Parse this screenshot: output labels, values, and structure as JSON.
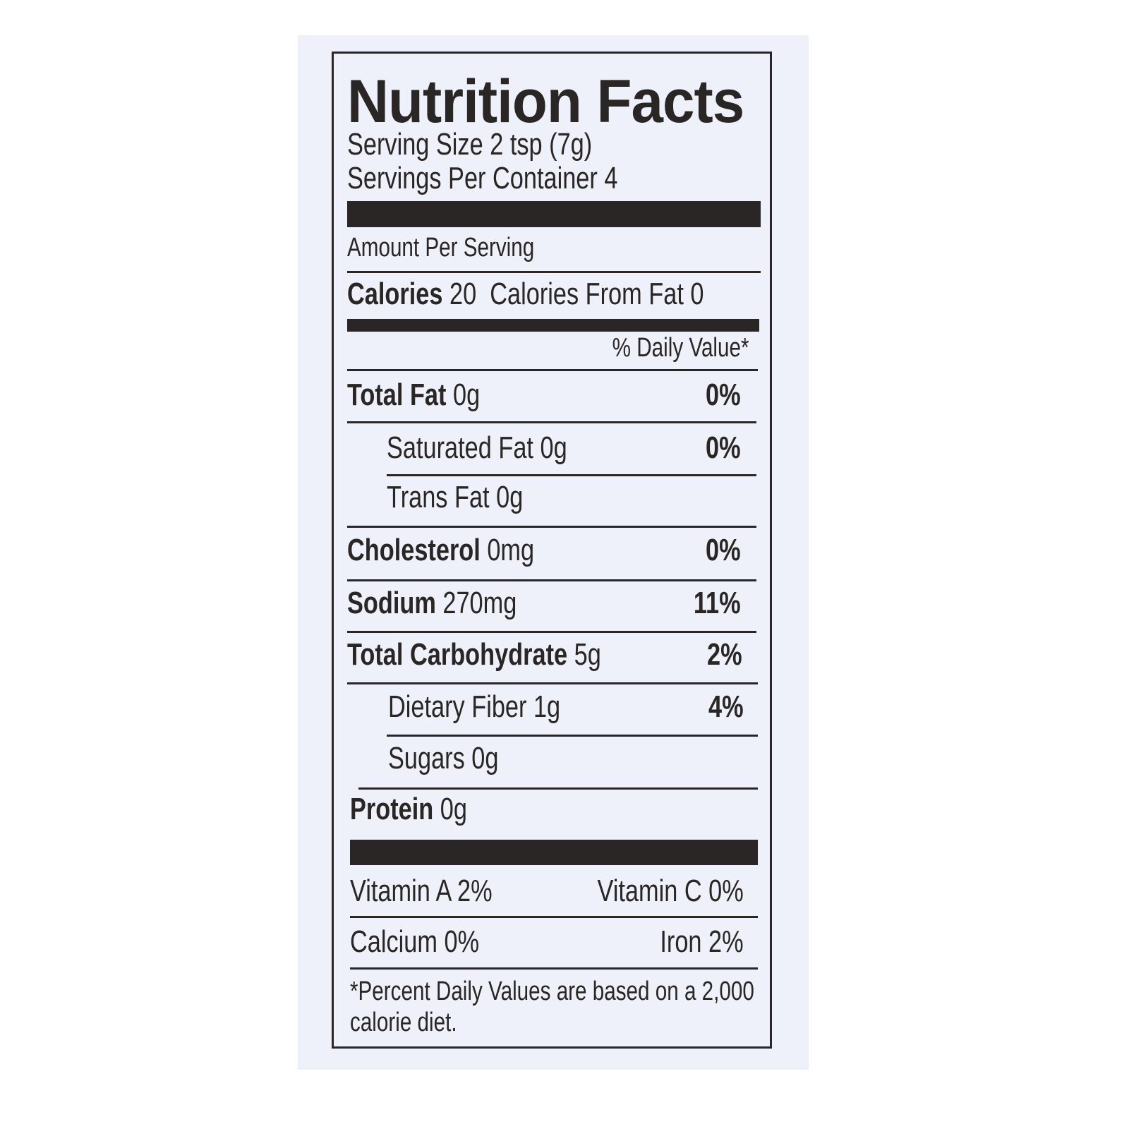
{
  "label": {
    "title": "Nutrition Facts",
    "serving_size": "Serving Size 2 tsp (7g)",
    "servings_per_container": "Servings Per Container 4",
    "amount_per_serving": "Amount Per Serving",
    "calories_label": "Calories",
    "calories_value": "20",
    "calories_from_fat": "Calories From Fat 0",
    "daily_value_header": "% Daily Value*",
    "nutrients": [
      {
        "name": "Total Fat",
        "amount": "0g",
        "dv": "0%"
      },
      {
        "name": "Saturated Fat 0g",
        "amount": "",
        "dv": "0%"
      },
      {
        "name": "Trans Fat 0g",
        "amount": "",
        "dv": ""
      },
      {
        "name": "Cholesterol",
        "amount": "0mg",
        "dv": "0%"
      },
      {
        "name": "Sodium",
        "amount": "270mg",
        "dv": "11%"
      },
      {
        "name": "Total Carbohydrate",
        "amount": "5g",
        "dv": "2%"
      },
      {
        "name": "Dietary Fiber 1g",
        "amount": "",
        "dv": "4%"
      },
      {
        "name": "Sugars 0g",
        "amount": "",
        "dv": ""
      },
      {
        "name": "Protein",
        "amount": "0g",
        "dv": ""
      }
    ],
    "vitamins": [
      {
        "left": "Vitamin A 2%",
        "right": "Vitamin C 0%"
      },
      {
        "left": "Calcium 0%",
        "right": "Iron 2%"
      }
    ],
    "footnote_line1": "*Percent Daily Values are based on a 2,000",
    "footnote_line2": "calorie diet."
  },
  "colors": {
    "ink": "#2a2625",
    "paper": "#eef1f9"
  }
}
